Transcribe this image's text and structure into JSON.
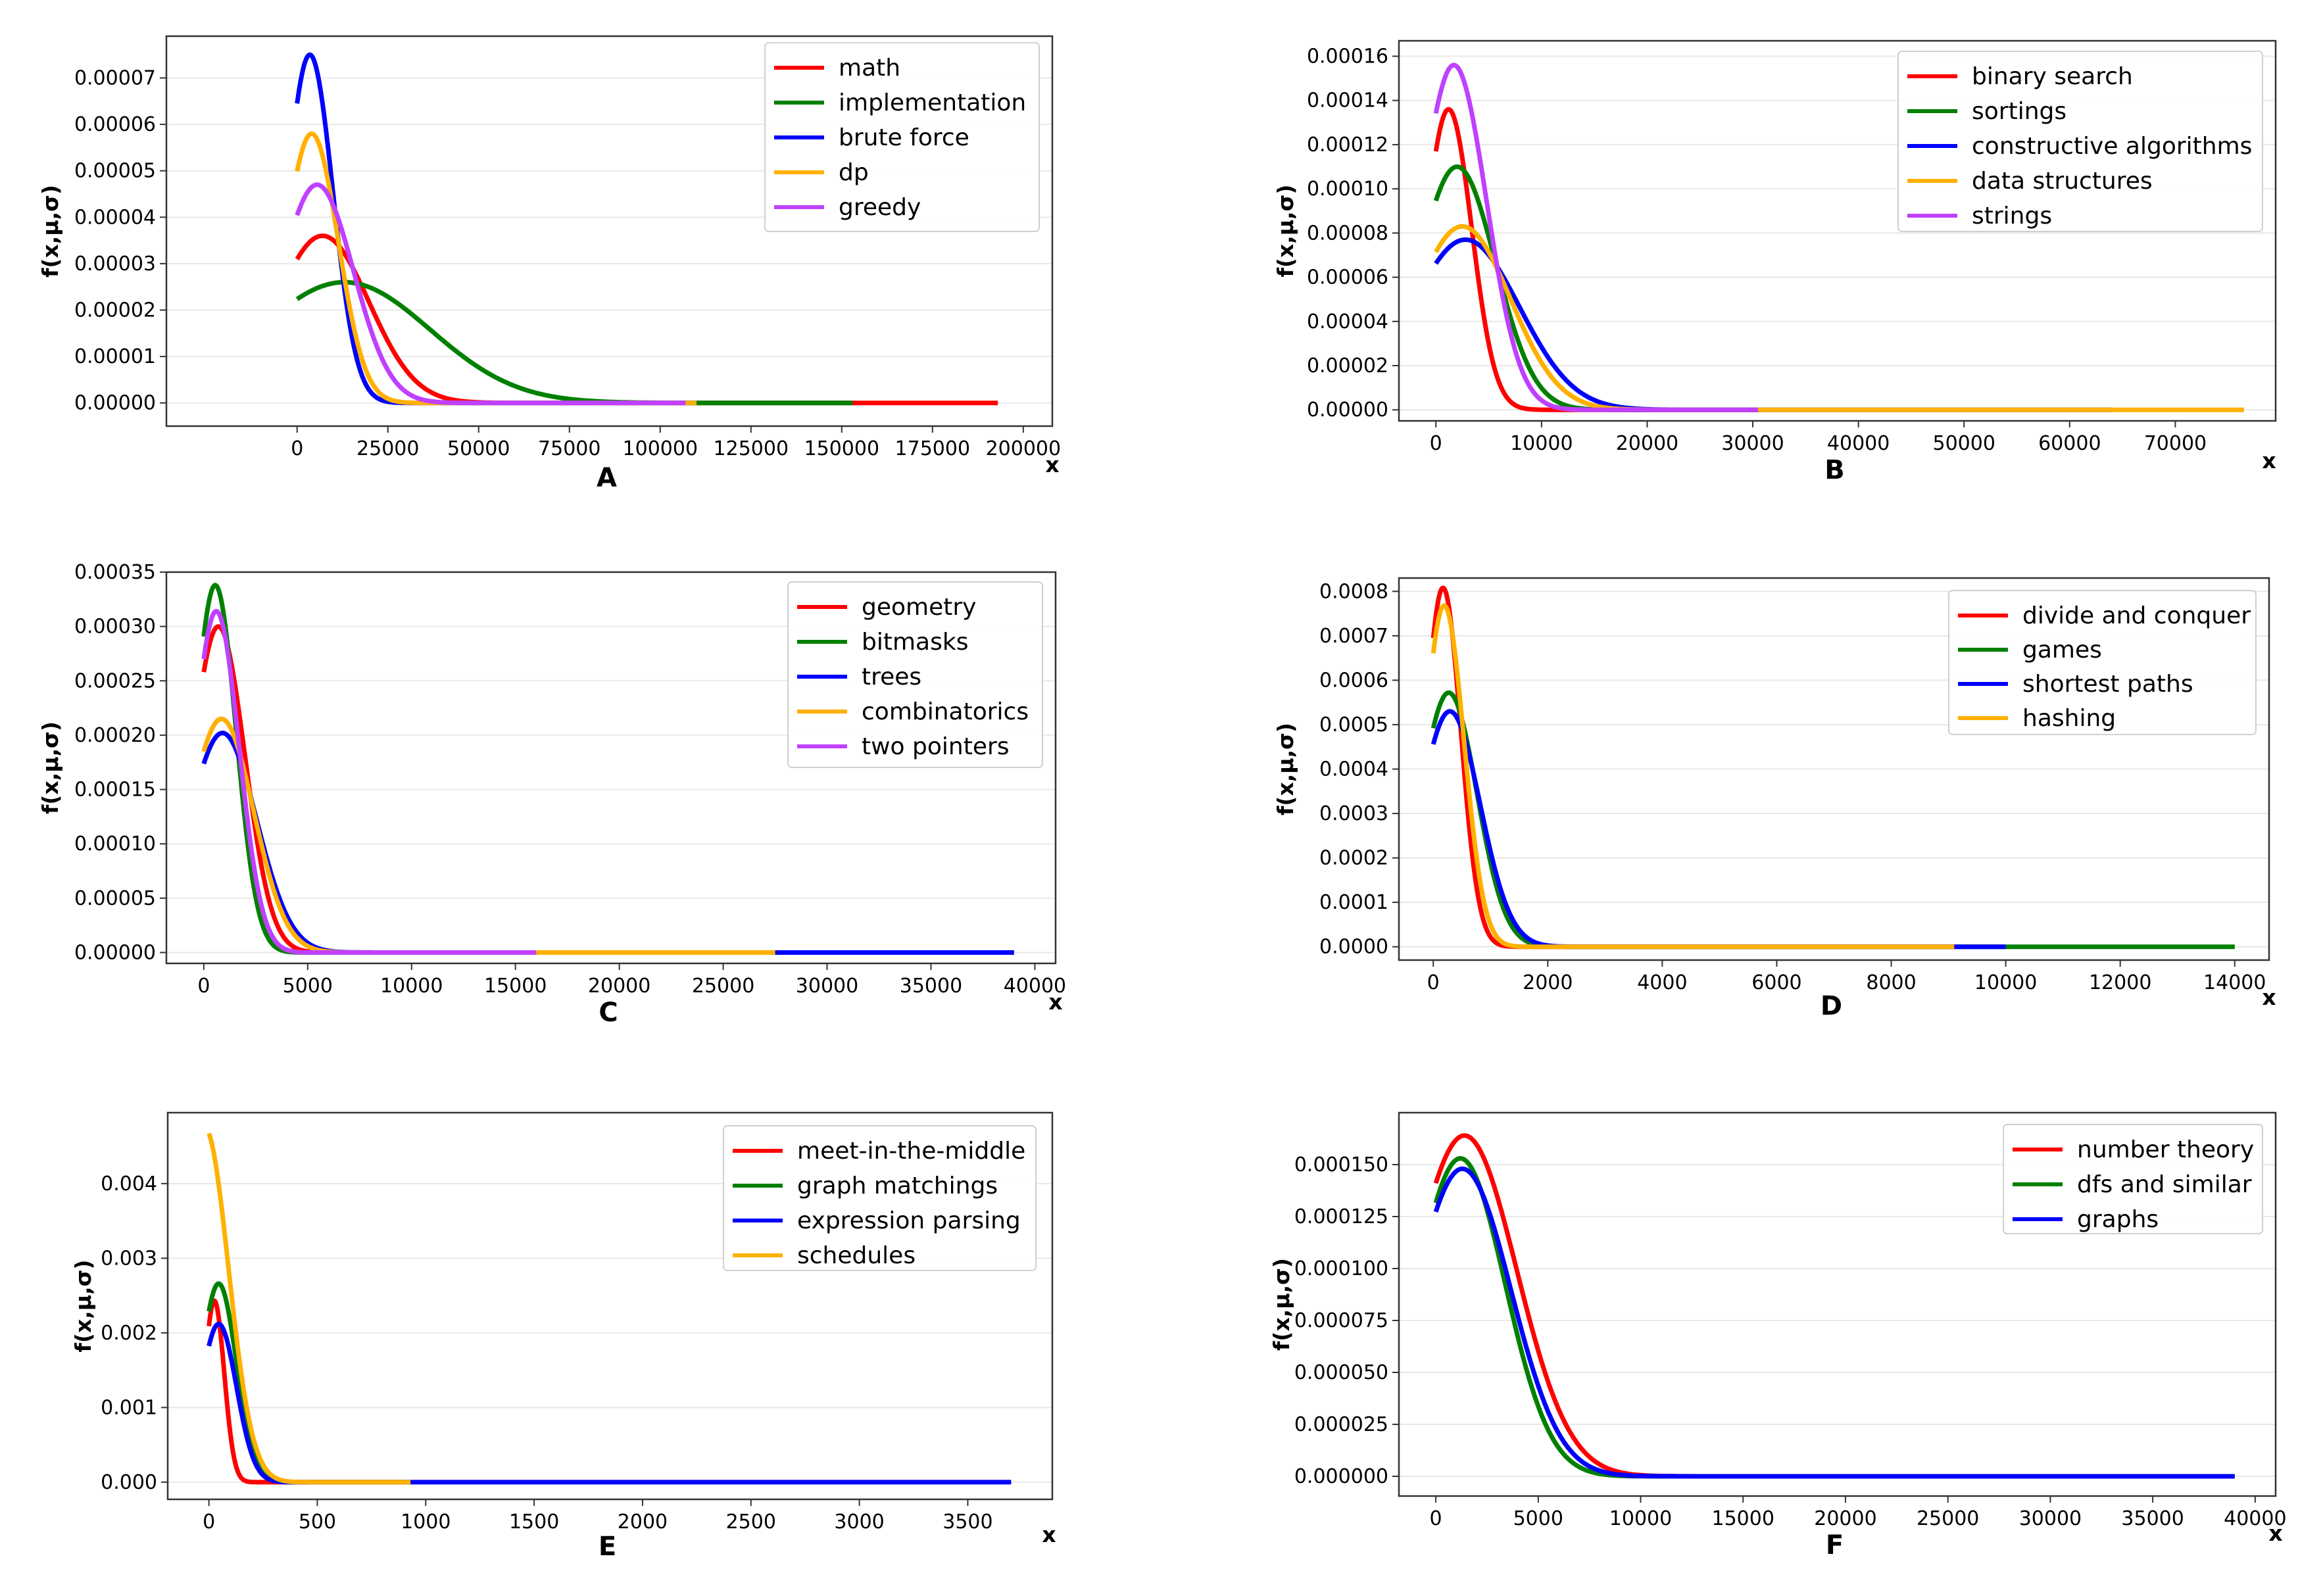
{
  "figure": {
    "panels": [
      "A",
      "B",
      "C",
      "D",
      "E",
      "F"
    ]
  },
  "chart_data": [
    {
      "type": "line",
      "panel_label": "A",
      "xlabel": "x",
      "ylabel": "f(x,μ,σ)",
      "xlim": [
        -36000,
        208000
      ],
      "ylim": [
        -5e-06,
        7.9e-05
      ],
      "xticks": [
        0,
        25000,
        50000,
        75000,
        100000,
        125000,
        150000,
        175000,
        200000
      ],
      "ytick_labels": [
        "0.00000",
        "0.00001",
        "0.00002",
        "0.00003",
        "0.00004",
        "0.00005",
        "0.00006",
        "0.00007"
      ],
      "yticks": [
        0,
        1e-05,
        2e-05,
        3e-05,
        4e-05,
        5e-05,
        6e-05,
        7e-05
      ],
      "legend_position": "top-right",
      "series": [
        {
          "name": "math",
          "color": "#ff0000",
          "mu": 7000,
          "peak": 3.6e-05,
          "xmax": 193000
        },
        {
          "name": "implementation",
          "color": "#008000",
          "mu": 13000,
          "peak": 2.6e-05,
          "xmax": 153000
        },
        {
          "name": "brute force",
          "color": "#0000ff",
          "mu": 3500,
          "peak": 7.5e-05,
          "xmax": 110000
        },
        {
          "name": "dp",
          "color": "#ffb000",
          "mu": 4000,
          "peak": 5.8e-05,
          "xmax": 110000
        },
        {
          "name": "greedy",
          "color": "#bf40ff",
          "mu": 5500,
          "peak": 4.7e-05,
          "xmax": 107000
        }
      ]
    },
    {
      "type": "line",
      "panel_label": "B",
      "xlabel": "x",
      "ylabel": "f(x,μ,σ)",
      "xlim": [
        -3500,
        79500
      ],
      "ylim": [
        -5e-06,
        0.000167
      ],
      "xticks": [
        0,
        10000,
        20000,
        30000,
        40000,
        50000,
        60000,
        70000
      ],
      "ytick_labels": [
        "0.00000",
        "0.00002",
        "0.00004",
        "0.00006",
        "0.00008",
        "0.00010",
        "0.00012",
        "0.00014",
        "0.00016"
      ],
      "yticks": [
        0,
        2e-05,
        4e-05,
        6e-05,
        8e-05,
        0.0001,
        0.00012,
        0.00014,
        0.00016
      ],
      "legend_position": "top-right",
      "series": [
        {
          "name": "binary search",
          "color": "#ff0000",
          "mu": 1200,
          "peak": 0.000136,
          "xmax": 30500
        },
        {
          "name": "sortings",
          "color": "#008000",
          "mu": 2000,
          "peak": 0.00011,
          "xmax": 30500
        },
        {
          "name": "constructive algorithms",
          "color": "#0000ff",
          "mu": 2800,
          "peak": 7.7e-05,
          "xmax": 64000
        },
        {
          "name": "data structures",
          "color": "#ffb000",
          "mu": 2500,
          "peak": 8.3e-05,
          "xmax": 76500
        },
        {
          "name": "strings",
          "color": "#bf40ff",
          "mu": 1700,
          "peak": 0.000156,
          "xmax": 30500
        }
      ]
    },
    {
      "type": "line",
      "panel_label": "C",
      "xlabel": "x",
      "ylabel": "f(x,μ,σ)",
      "xlim": [
        -1800,
        41000
      ],
      "ylim": [
        -1e-05,
        0.00035
      ],
      "xticks": [
        0,
        5000,
        10000,
        15000,
        20000,
        25000,
        30000,
        35000,
        40000
      ],
      "ytick_labels": [
        "0.00000",
        "0.00005",
        "0.00010",
        "0.00015",
        "0.00020",
        "0.00025",
        "0.00030",
        "0.00035"
      ],
      "yticks": [
        0,
        5e-05,
        0.0001,
        0.00015,
        0.0002,
        0.00025,
        0.0003,
        0.00035
      ],
      "legend_position": "top-right",
      "series": [
        {
          "name": "geometry",
          "color": "#ff0000",
          "mu": 700,
          "peak": 0.0003,
          "xmax": 16000
        },
        {
          "name": "bitmasks",
          "color": "#008000",
          "mu": 550,
          "peak": 0.000338,
          "xmax": 16000
        },
        {
          "name": "trees",
          "color": "#0000ff",
          "mu": 900,
          "peak": 0.000202,
          "xmax": 39000
        },
        {
          "name": "combinatorics",
          "color": "#ffb000",
          "mu": 850,
          "peak": 0.000215,
          "xmax": 27500
        },
        {
          "name": "two pointers",
          "color": "#bf40ff",
          "mu": 600,
          "peak": 0.000314,
          "xmax": 16000
        }
      ]
    },
    {
      "type": "line",
      "panel_label": "D",
      "xlabel": "x",
      "ylabel": "f(x,μ,σ)",
      "xlim": [
        -600,
        14600
      ],
      "ylim": [
        -3e-05,
        0.00083
      ],
      "xticks": [
        0,
        2000,
        4000,
        6000,
        8000,
        10000,
        12000,
        14000
      ],
      "ytick_labels": [
        "0.0000",
        "0.0001",
        "0.0002",
        "0.0003",
        "0.0004",
        "0.0005",
        "0.0006",
        "0.0007",
        "0.0008"
      ],
      "yticks": [
        0,
        0.0001,
        0.0002,
        0.0003,
        0.0004,
        0.0005,
        0.0006,
        0.0007,
        0.0008
      ],
      "legend_position": "top-right",
      "series": [
        {
          "name": "divide and conquer",
          "color": "#ff0000",
          "mu": 170,
          "peak": 0.000808,
          "xmax": 9100
        },
        {
          "name": "games",
          "color": "#008000",
          "mu": 270,
          "peak": 0.000572,
          "xmax": 14000
        },
        {
          "name": "shortest paths",
          "color": "#0000ff",
          "mu": 290,
          "peak": 0.00053,
          "xmax": 10000
        },
        {
          "name": "hashing",
          "color": "#ffb000",
          "mu": 190,
          "peak": 0.000768,
          "xmax": 9100
        }
      ]
    },
    {
      "type": "line",
      "panel_label": "E",
      "xlabel": "x",
      "ylabel": "f(x,μ,σ)",
      "xlim": [
        -190,
        3890
      ],
      "ylim": [
        -0.00023,
        0.00495
      ],
      "xticks": [
        0,
        500,
        1000,
        1500,
        2000,
        2500,
        3000,
        3500
      ],
      "ytick_labels": [
        "0.000",
        "0.001",
        "0.002",
        "0.003",
        "0.004"
      ],
      "yticks": [
        0,
        0.001,
        0.002,
        0.003,
        0.004
      ],
      "legend_position": "top-right",
      "series": [
        {
          "name": "meet-in-the-middle",
          "color": "#ff0000",
          "mu": 25,
          "peak": 0.00243,
          "xmax": 930
        },
        {
          "name": "graph matchings",
          "color": "#008000",
          "mu": 45,
          "peak": 0.00266,
          "xmax": 930
        },
        {
          "name": "expression parsing",
          "color": "#0000ff",
          "mu": 45,
          "peak": 0.00212,
          "xmax": 3700
        },
        {
          "name": "schedules",
          "color": "#ffb000",
          "mu": -20,
          "peak": 0.00475,
          "xmax": 930
        }
      ]
    },
    {
      "type": "line",
      "panel_label": "F",
      "xlabel": "x",
      "ylabel": "f(x,μ,σ)",
      "xlim": [
        -1800,
        41000
      ],
      "ylim": [
        -9.5e-06,
        0.000175
      ],
      "xticks": [
        0,
        5000,
        10000,
        15000,
        20000,
        25000,
        30000,
        35000,
        40000
      ],
      "ytick_labels": [
        "0.000000",
        "0.000025",
        "0.000050",
        "0.000075",
        "0.000100",
        "0.000125",
        "0.000150"
      ],
      "yticks": [
        0,
        2.5e-05,
        5e-05,
        7.5e-05,
        0.0001,
        0.000125,
        0.00015
      ],
      "legend_position": "top-right",
      "series": [
        {
          "name": "number theory",
          "color": "#ff0000",
          "mu": 1400,
          "peak": 0.000164,
          "xmax": 39000
        },
        {
          "name": "dfs and similar",
          "color": "#008000",
          "mu": 1200,
          "peak": 0.000153,
          "xmax": 39000
        },
        {
          "name": "graphs",
          "color": "#0000ff",
          "mu": 1300,
          "peak": 0.000148,
          "xmax": 39000
        }
      ]
    }
  ]
}
